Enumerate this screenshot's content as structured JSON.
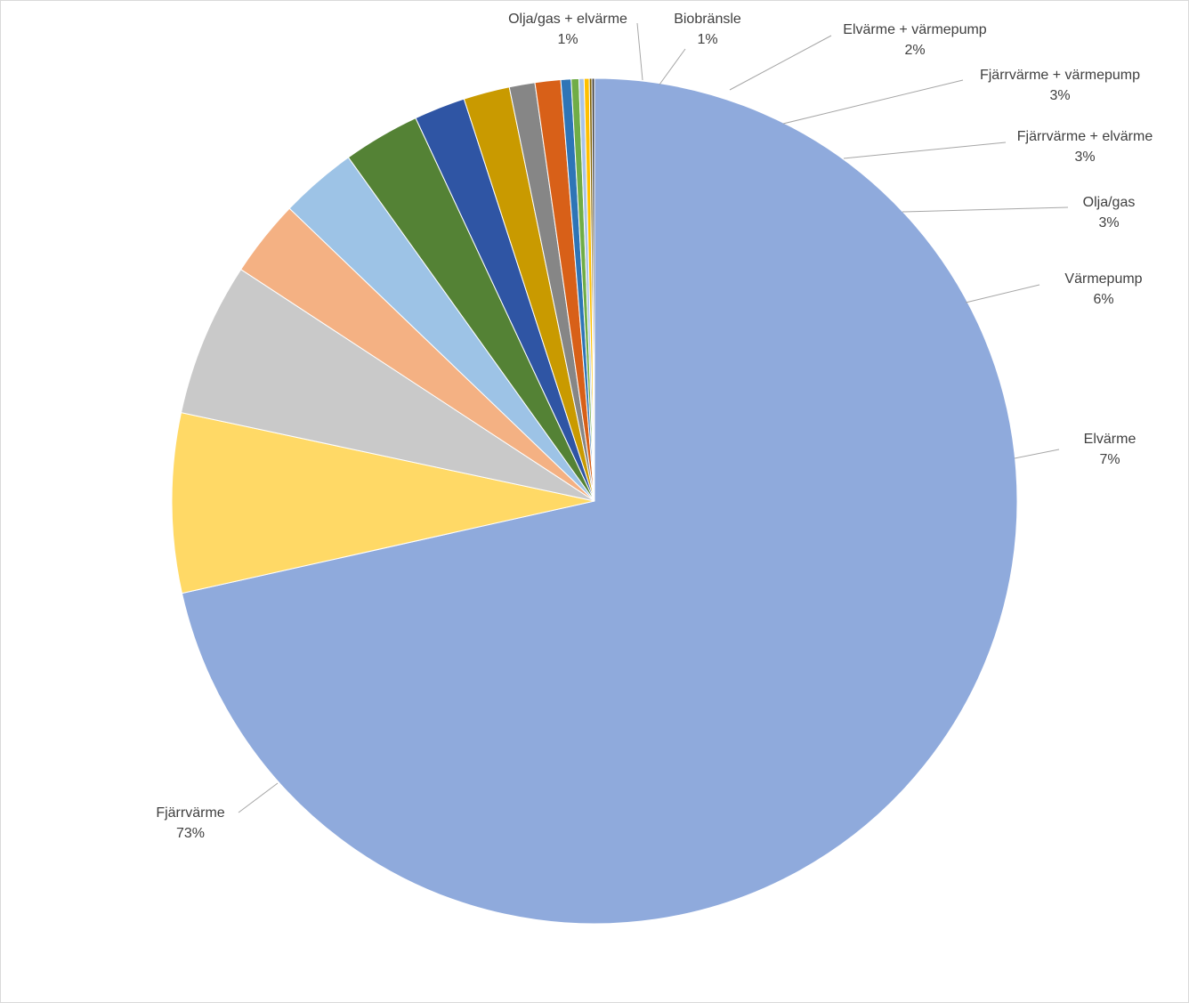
{
  "chart_data": {
    "type": "pie",
    "start_angle_deg": 0,
    "direction": "clockwise",
    "slices": [
      {
        "name": "Fjärrvärme",
        "value": 73,
        "color": "#8faadc",
        "label": "Fjärrvärme",
        "pct_label": "73%"
      },
      {
        "name": "Elvärme",
        "value": 7,
        "color": "#ffd966",
        "label": "Elvärme",
        "pct_label": "7%"
      },
      {
        "name": "Värmepump",
        "value": 6,
        "color": "#c9c9c9",
        "label": "Värmepump",
        "pct_label": "6%"
      },
      {
        "name": "Olja/gas",
        "value": 3,
        "color": "#f4b183",
        "label": "Olja/gas",
        "pct_label": "3%"
      },
      {
        "name": "Fjärrvärme + elvärme",
        "value": 3,
        "color": "#9dc3e6",
        "label": "Fjärrvärme + elvärme",
        "pct_label": "3%"
      },
      {
        "name": "Fjärrvärme + värmepump",
        "value": 3,
        "color": "#548235",
        "label": "Fjärrvärme + värmepump",
        "pct_label": "3%"
      },
      {
        "name": "Elvärme + värmepump",
        "value": 2,
        "color": "#2f55a4",
        "label": "Elvärme + värmepump",
        "pct_label": "2%"
      },
      {
        "name": "Unlabeled slice A",
        "value": 1.8,
        "color": "#c99a00",
        "label": "",
        "pct_label": ""
      },
      {
        "name": "Biobränsle",
        "value": 1,
        "color": "#868686",
        "label": "Biobränsle",
        "pct_label": "1%"
      },
      {
        "name": "Olja/gas + elvärme",
        "value": 1,
        "color": "#d86018",
        "label": "Olja/gas + elvärme",
        "pct_label": "1%"
      },
      {
        "name": "Unlabeled slice B",
        "value": 0.4,
        "color": "#2e75b6",
        "label": "",
        "pct_label": ""
      },
      {
        "name": "Unlabeled slice C",
        "value": 0.3,
        "color": "#70ad47",
        "label": "",
        "pct_label": ""
      },
      {
        "name": "Unlabeled slice D",
        "value": 0.2,
        "color": "#a9c4e8",
        "label": "",
        "pct_label": ""
      },
      {
        "name": "Unlabeled slice E",
        "value": 0.2,
        "color": "#ffc000",
        "label": "",
        "pct_label": ""
      },
      {
        "name": "Unlabeled slice F",
        "value": 0.1,
        "color": "#7f6000",
        "label": "",
        "pct_label": ""
      },
      {
        "name": "Unlabeled slice G",
        "value": 0.1,
        "color": "#404040",
        "label": "",
        "pct_label": ""
      }
    ]
  }
}
